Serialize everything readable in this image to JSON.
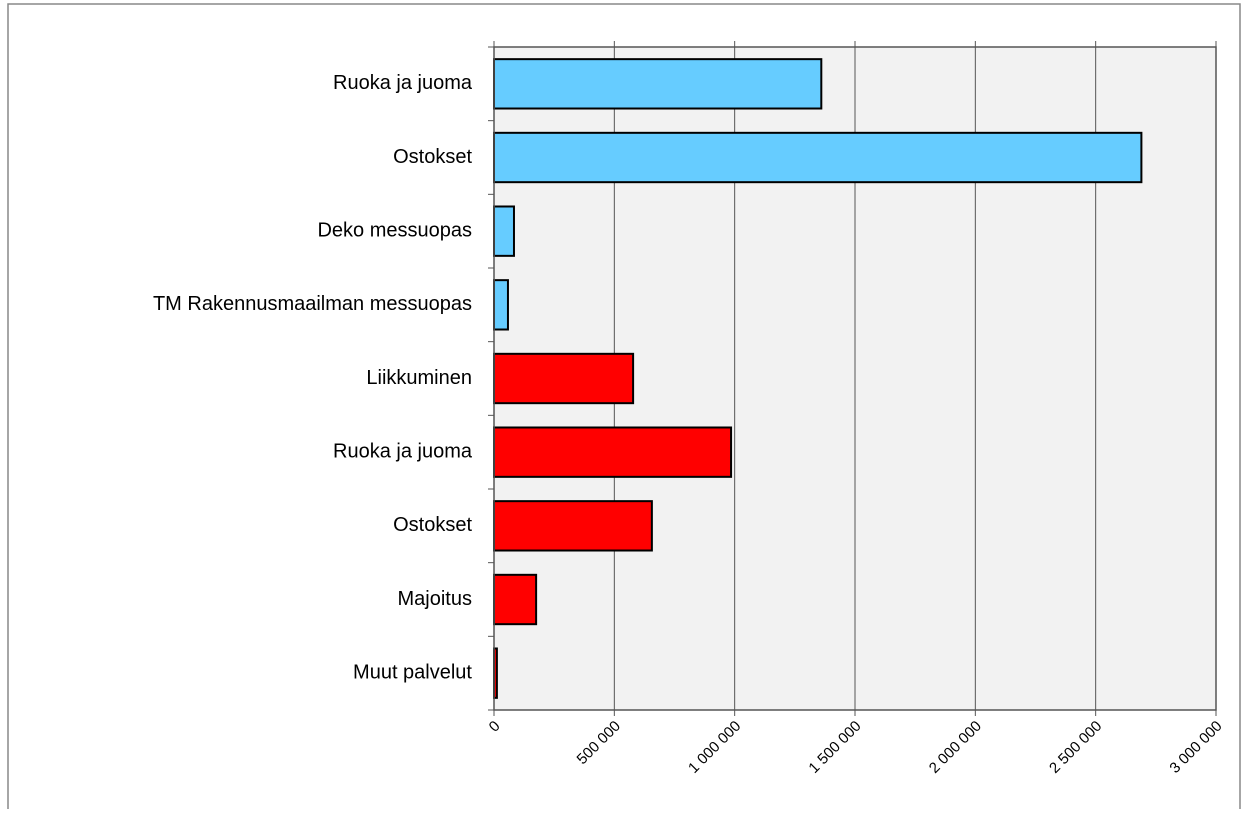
{
  "chart_data": {
    "type": "barh",
    "categories": [
      "Ruoka ja juoma",
      "Ostokset",
      "Deko messuopas",
      "TM Rakennusmaailman messuopas",
      "Liikkuminen",
      "Ruoka ja juoma",
      "Ostokset",
      "Majoitus",
      "Muut palvelut"
    ],
    "values": [
      1360000,
      2690000,
      83000,
      58000,
      578000,
      985000,
      656000,
      175000,
      12000
    ],
    "colors": [
      "#66ccff",
      "#66ccff",
      "#66ccff",
      "#66ccff",
      "#ff0000",
      "#ff0000",
      "#ff0000",
      "#ff0000",
      "#ff0000"
    ],
    "xlim": [
      0,
      3000000
    ],
    "xticks": [
      0,
      {
        "value": 500000,
        "label": "500 000"
      },
      {
        "value": 1000000,
        "label": "1 000 000"
      },
      {
        "value": 1500000,
        "label": "1 500 000"
      },
      {
        "value": 2000000,
        "label": "2 000 000"
      },
      {
        "value": 2500000,
        "label": "2 500 000"
      },
      {
        "value": 3000000,
        "label": "3 000 000"
      }
    ],
    "grid": true
  }
}
